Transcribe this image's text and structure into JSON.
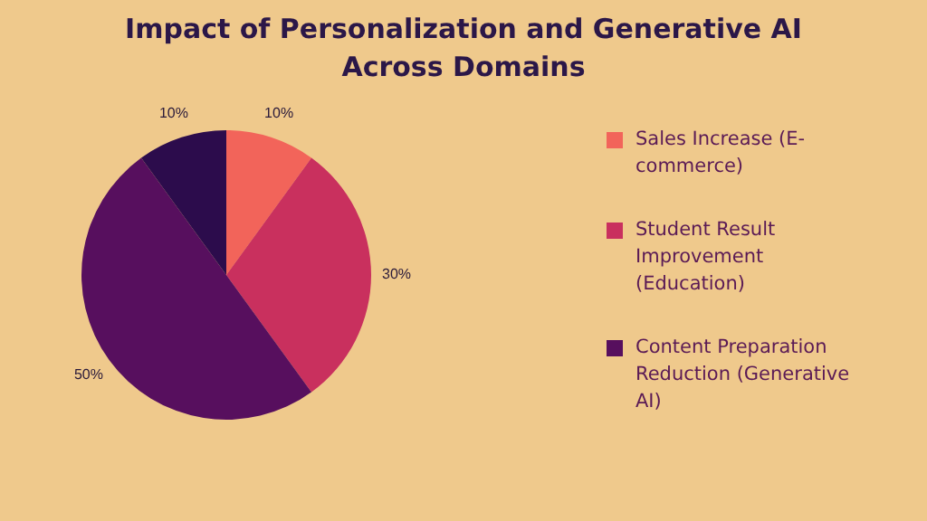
{
  "chart_data": {
    "type": "pie",
    "title": "Impact of Personalization and Generative AI Across Domains",
    "categories": [
      "Sales Increase (E-commerce)",
      "Student Result Improvement (Education)",
      "Content Preparation Reduction (Generative AI)",
      null
    ],
    "values": [
      10,
      30,
      50,
      10
    ],
    "colors": [
      "#f2645a",
      "#c9305e",
      "#570f5e",
      "#2c0c4c"
    ],
    "value_labels": [
      "10%",
      "30%",
      "50%",
      "10%"
    ],
    "legend": "right"
  }
}
